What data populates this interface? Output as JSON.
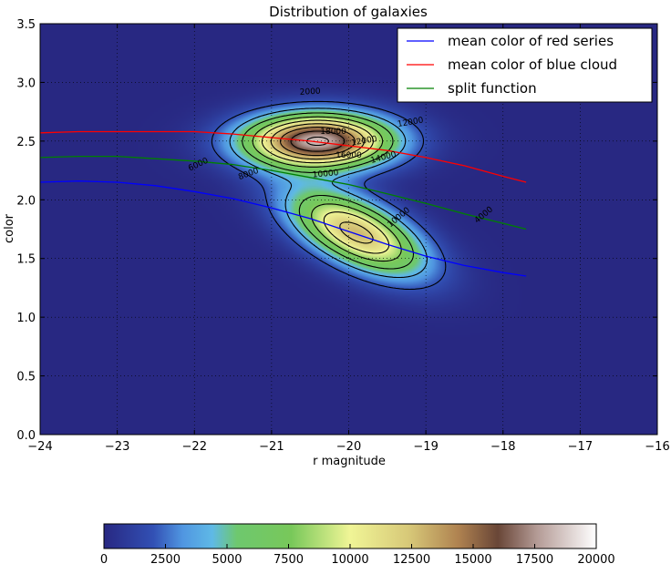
{
  "chart_data": {
    "type": "heatmap",
    "title": "Distribution of galaxies",
    "xlabel": "r magnitude",
    "ylabel": "color",
    "xlim": [
      -24,
      -16
    ],
    "ylim": [
      0.0,
      3.5
    ],
    "x_ticks": [
      "−24",
      "−23",
      "−22",
      "−21",
      "−20",
      "−19",
      "−18",
      "−17",
      "−16"
    ],
    "y_ticks": [
      "0.0",
      "0.5",
      "1.0",
      "1.5",
      "2.0",
      "2.5",
      "3.0",
      "3.5"
    ],
    "grid": true,
    "legend_position": "top-right",
    "density_components": [
      {
        "x": -20.4,
        "y": 2.5,
        "sx": 0.65,
        "sy": 0.16,
        "amp": 18400
      },
      {
        "x": -19.9,
        "y": 1.72,
        "sx": 0.6,
        "sy": 0.2,
        "amp": 12800,
        "skew": 0.25
      }
    ],
    "contour_levels": [
      2000,
      4000,
      6000,
      8000,
      10000,
      12000,
      14000,
      16000,
      18000
    ],
    "contour_labels": [
      "2000",
      "4000",
      "6000",
      "8000",
      "10000",
      "12000",
      "14000",
      "16000",
      "18000",
      "12000",
      "10000"
    ],
    "series": [
      {
        "name": "mean color of red series",
        "color": "#0000ff",
        "x": [
          -24,
          -23.5,
          -23,
          -22.5,
          -22,
          -21.5,
          -21,
          -20.5,
          -20,
          -19.5,
          -19,
          -18.5,
          -18,
          -17.7
        ],
        "y": [
          2.15,
          2.16,
          2.15,
          2.12,
          2.07,
          2.01,
          1.93,
          1.84,
          1.73,
          1.62,
          1.52,
          1.44,
          1.38,
          1.35
        ]
      },
      {
        "name": "mean color of blue cloud",
        "color": "#ff0000",
        "x": [
          -24,
          -23.5,
          -23,
          -22.5,
          -22,
          -21.5,
          -21,
          -20.5,
          -20,
          -19.5,
          -19,
          -18.5,
          -18,
          -17.7
        ],
        "y": [
          2.57,
          2.58,
          2.58,
          2.58,
          2.58,
          2.56,
          2.53,
          2.5,
          2.46,
          2.42,
          2.36,
          2.29,
          2.2,
          2.15
        ]
      },
      {
        "name": "split function",
        "color": "#008000",
        "x": [
          -24,
          -23.5,
          -23,
          -22.5,
          -22,
          -21.5,
          -21,
          -20.5,
          -20,
          -19.5,
          -19,
          -18.5,
          -18,
          -17.7
        ],
        "y": [
          2.36,
          2.37,
          2.37,
          2.35,
          2.33,
          2.3,
          2.25,
          2.19,
          2.13,
          2.05,
          1.97,
          1.88,
          1.8,
          1.75
        ]
      }
    ],
    "colorbar": {
      "ticks": [
        "0",
        "2500",
        "5000",
        "7500",
        "10000",
        "12500",
        "15000",
        "17500",
        "20000"
      ],
      "range": [
        0,
        20000
      ]
    }
  }
}
